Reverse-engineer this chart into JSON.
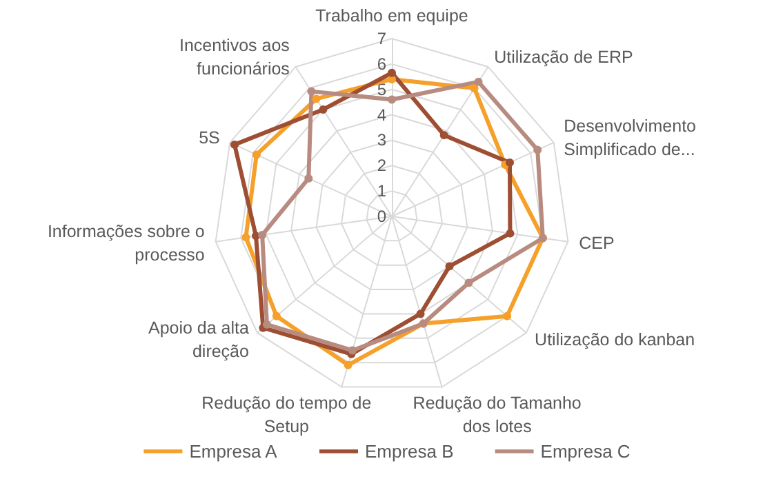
{
  "chart_data": {
    "type": "radar",
    "categories": [
      "Trabalho em equipe",
      "Utilização de ERP",
      "Desenvolvimento Simplificado de...",
      "CEP",
      "Utilização do kanban",
      "Redução do Tamanho dos lotes",
      "Redução do tempo de Setup",
      "Apoio da alta direção",
      "Informações sobre o processo",
      "5S",
      "Incentivos aos funcionários"
    ],
    "series": [
      {
        "name": "Empresa A",
        "color": "#f5a02a",
        "values": [
          5.4,
          6.0,
          4.9,
          6.0,
          6.0,
          4.4,
          6.1,
          6.0,
          5.8,
          5.85,
          5.5
        ]
      },
      {
        "name": "Empresa B",
        "color": "#9e4e32",
        "values": [
          5.65,
          3.8,
          5.1,
          4.7,
          3.0,
          4.0,
          5.65,
          6.7,
          5.4,
          6.8,
          5.0
        ]
      },
      {
        "name": "Empresa C",
        "color": "#b88b80",
        "values": [
          4.6,
          6.3,
          6.3,
          6.0,
          4.0,
          4.4,
          5.5,
          6.5,
          5.15,
          3.6,
          5.85
        ]
      }
    ],
    "ylim": [
      0,
      7
    ],
    "yticks": [
      0,
      1,
      2,
      3,
      4,
      5,
      6,
      7
    ],
    "grid": true,
    "legend": "bottom",
    "marker": "circle",
    "line_style": "solid"
  }
}
